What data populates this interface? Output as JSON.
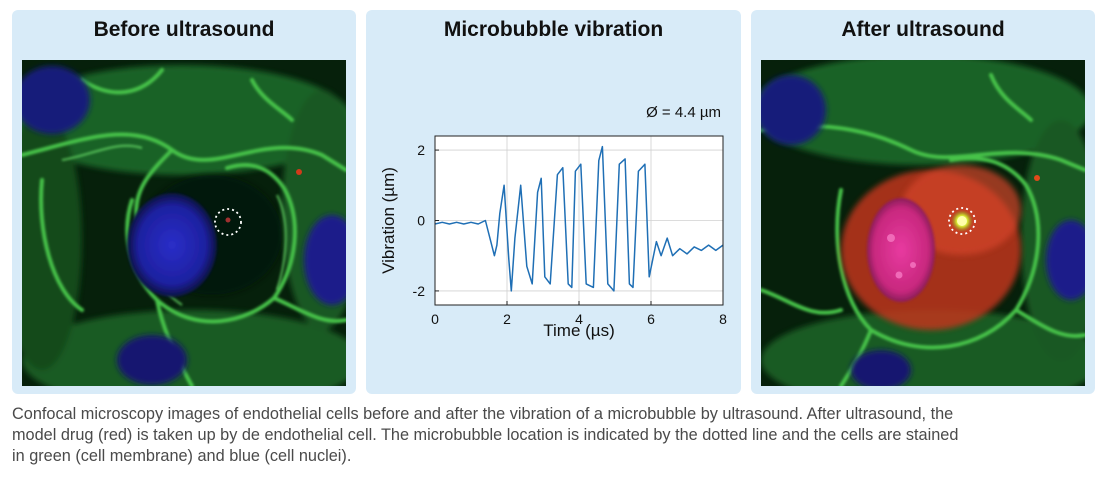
{
  "panels": {
    "left": {
      "title": "Before ultrasound"
    },
    "middle": {
      "title": "Microbubble vibration"
    },
    "right": {
      "title": "After ultrasound"
    }
  },
  "chart_data": {
    "type": "line",
    "title": "Microbubble vibration",
    "annotation": "Ø = 4.4 µm",
    "xlabel": "Time (µs)",
    "ylabel": "Vibration (µm)",
    "xlim": [
      0,
      8
    ],
    "ylim": [
      -2.4,
      2.4
    ],
    "xticks": [
      "0",
      "2",
      "4",
      "6",
      "8"
    ],
    "yticks": [
      "2",
      "0",
      "-2"
    ],
    "grid": true,
    "color": "#1f6fb5",
    "series": [
      {
        "x": [
          0,
          0.2,
          0.4,
          0.6,
          0.8,
          1.0,
          1.2,
          1.4,
          1.55,
          1.65,
          1.72,
          1.8,
          1.92,
          2.05,
          2.12,
          2.22,
          2.38,
          2.55,
          2.7,
          2.85,
          2.95,
          3.05,
          3.2,
          3.4,
          3.55,
          3.7,
          3.8,
          3.9,
          4.05,
          4.2,
          4.4,
          4.55,
          4.65,
          4.8,
          4.97,
          5.12,
          5.28,
          5.4,
          5.5,
          5.65,
          5.83,
          5.95,
          6.05,
          6.15,
          6.28,
          6.45,
          6.6,
          6.8,
          7.0,
          7.2,
          7.4,
          7.6,
          7.8,
          8.0
        ],
        "y": [
          -0.1,
          -0.05,
          -0.1,
          -0.05,
          -0.1,
          -0.05,
          -0.1,
          0.0,
          -0.6,
          -1.0,
          -0.7,
          0.2,
          1.0,
          -1.1,
          -2.0,
          -0.5,
          1.0,
          -1.3,
          -1.8,
          0.8,
          1.2,
          -1.6,
          -1.8,
          1.3,
          1.5,
          -1.8,
          -1.9,
          1.4,
          1.6,
          -1.8,
          -1.9,
          1.7,
          2.1,
          -1.8,
          -2.0,
          1.6,
          1.75,
          -1.8,
          -1.9,
          1.4,
          1.6,
          -1.6,
          -1.1,
          -0.6,
          -1.0,
          -0.5,
          -1.0,
          -0.8,
          -0.95,
          -0.75,
          -0.85,
          -0.7,
          -0.85,
          -0.7
        ]
      }
    ]
  },
  "caption": {
    "line1": "Confocal microscopy images of endothelial cells before and after the vibration of a microbubble by ultrasound. After ultrasound, the",
    "line2": "model drug (red) is taken up by de endothelial cell. The microbubble location is indicated by the dotted line and the cells are stained",
    "line3": "in green (cell membrane) and blue (cell nuclei)."
  }
}
